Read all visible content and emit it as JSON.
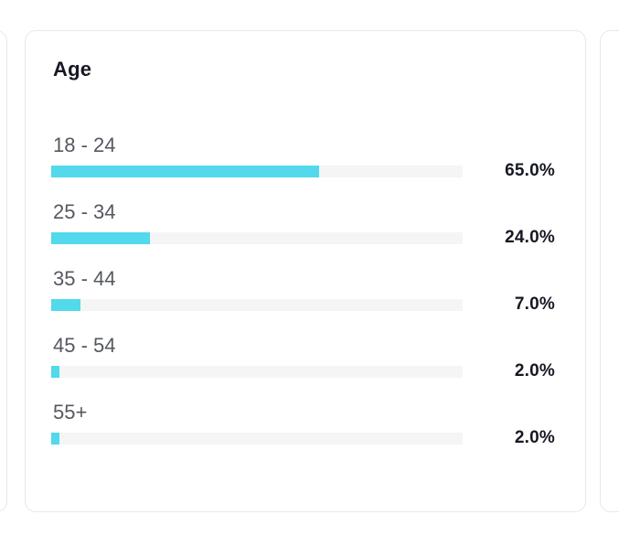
{
  "card": {
    "title": "Age"
  },
  "chart_data": {
    "type": "bar",
    "orientation": "horizontal",
    "title": "Age",
    "categories": [
      "18 - 24",
      "25 - 34",
      "35 - 44",
      "45 - 54",
      "55+"
    ],
    "values": [
      65.0,
      24.0,
      7.0,
      2.0,
      2.0
    ],
    "value_labels": [
      "65.0%",
      "24.0%",
      "7.0%",
      "2.0%",
      "2.0%"
    ],
    "unit": "percent",
    "xlim": [
      0,
      100
    ],
    "grid": false,
    "legend": false,
    "bar_color": "#52d9ec",
    "track_color": "#f5f5f6"
  },
  "colors": {
    "accent": "#52d9ec",
    "track": "#f5f5f6",
    "text_primary": "#161823",
    "text_secondary": "#555861",
    "card_border": "#e8e8ea",
    "background": "#ffffff"
  }
}
